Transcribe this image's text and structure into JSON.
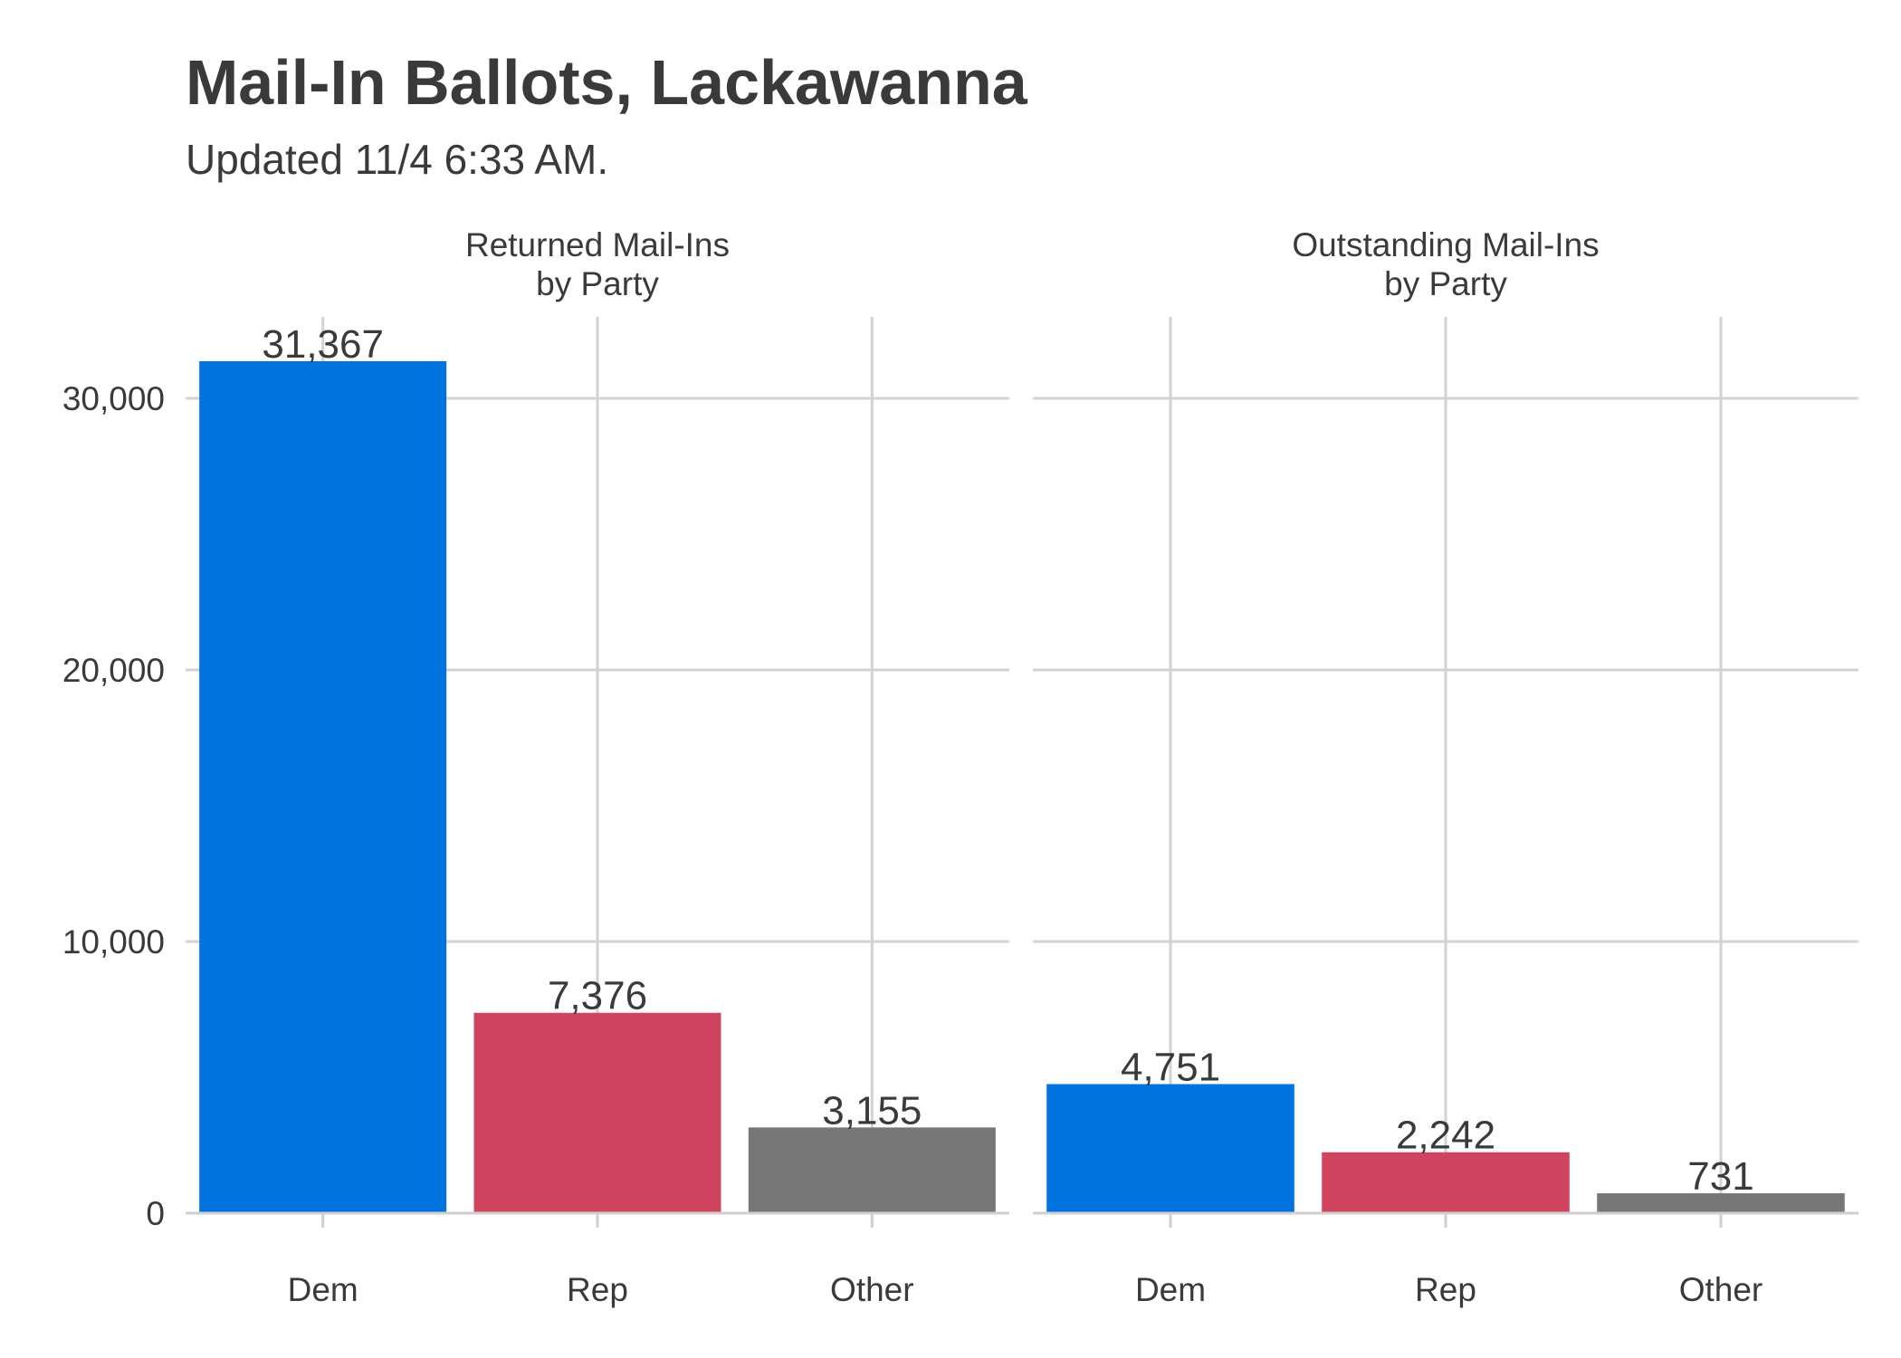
{
  "chart_data": {
    "type": "bar",
    "title": "Mail-In Ballots, Lackawanna",
    "subtitle": "Updated 11/4 6:33 AM.",
    "categories": [
      "Dem",
      "Rep",
      "Other"
    ],
    "colors": {
      "Dem": "#0073de",
      "Rep": "#d1445f",
      "Other": "#777777"
    },
    "ylim": [
      0,
      33000
    ],
    "yticks": [
      0,
      10000,
      20000,
      30000
    ],
    "ytick_labels": [
      "0",
      "10,000",
      "20,000",
      "30,000"
    ],
    "grid": true,
    "legend": "none",
    "facets": [
      {
        "title_line1": "Returned Mail-Ins",
        "title_line2": "by Party",
        "values": [
          31367,
          7376,
          3155
        ],
        "value_labels": [
          "31,367",
          "7,376",
          "3,155"
        ]
      },
      {
        "title_line1": "Outstanding Mail-Ins",
        "title_line2": "by Party",
        "values": [
          4751,
          2242,
          731
        ],
        "value_labels": [
          "4,751",
          "2,242",
          "731"
        ]
      }
    ]
  }
}
